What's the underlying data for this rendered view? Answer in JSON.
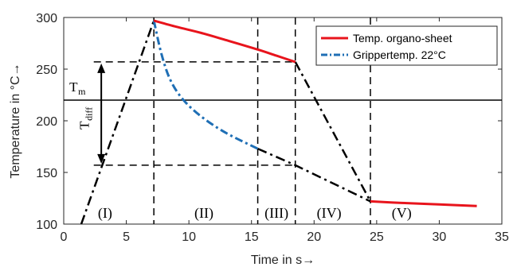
{
  "chart_data": {
    "type": "line",
    "xlabel": "Time in s→",
    "ylabel": "Temperature in °C→",
    "xlim": [
      0,
      35
    ],
    "ylim": [
      100,
      300
    ],
    "xticks": [
      "0",
      "5",
      "10",
      "15",
      "20",
      "25",
      "30",
      "35"
    ],
    "yticks": [
      "100",
      "150",
      "200",
      "250",
      "300"
    ],
    "grid": false,
    "legend_position": "top-right",
    "series": [
      {
        "name": "Temp. organo-sheet",
        "color": "#e8141c",
        "style": "solid",
        "x": [
          7.2,
          9,
          11,
          13,
          15.5,
          17,
          18.5
        ],
        "y": [
          297,
          291,
          285,
          278,
          269,
          263,
          257
        ],
        "x2": [
          24.5,
          27,
          30,
          33
        ],
        "y2": [
          122,
          120.5,
          119,
          117.5
        ]
      },
      {
        "name": "Grippertemp. 22°C",
        "color": "#1f6fb5",
        "style": "dashdot",
        "x": [
          7.2,
          7.8,
          8.5,
          9.5,
          11,
          13,
          15.5
        ],
        "y": [
          297,
          265,
          240,
          221,
          204,
          188,
          173
        ]
      }
    ],
    "construction_lines": {
      "up_ramp": [
        [
          1.4,
          100
        ],
        [
          7.2,
          297
        ]
      ],
      "to_mid": [
        [
          15.5,
          173
        ],
        [
          18.5,
          157
        ],
        [
          24.5,
          122
        ]
      ],
      "down_ramp": [
        [
          18.5,
          257
        ],
        [
          24.5,
          122
        ]
      ],
      "phase_boundaries": [
        7.2,
        15.5,
        18.5,
        24.5
      ],
      "upper_level": 257,
      "lower_level": 157,
      "melt_line": 220
    },
    "annotations": {
      "tm_main": "T",
      "tm_sub": "m",
      "tdiff_main": "T",
      "tdiff_sub": "diff",
      "phases": [
        {
          "label": "(I)",
          "x": 3.3
        },
        {
          "label": "(II)",
          "x": 11.2
        },
        {
          "label": "(III)",
          "x": 17.0
        },
        {
          "label": "(IV)",
          "x": 21.2
        },
        {
          "label": "(V)",
          "x": 27.0
        }
      ]
    }
  }
}
